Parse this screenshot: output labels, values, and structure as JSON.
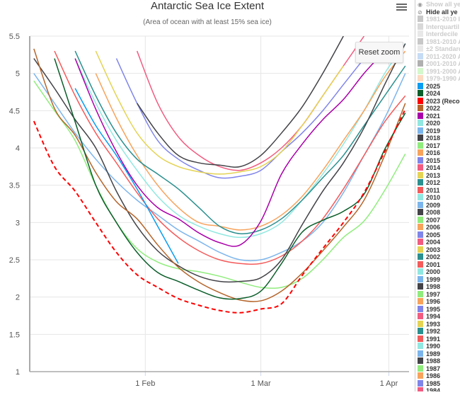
{
  "chart_data": {
    "type": "line",
    "title": "Antarctic Sea Ice Extent",
    "subtitle": "(Area of ocean with at least 15% sea ice)",
    "x": [
      "Jan 5",
      "Jan 10",
      "Jan 15",
      "Jan 20",
      "Jan 25",
      "Jan 30",
      "Feb 4",
      "Feb 9",
      "Feb 14",
      "Feb 19",
      "Feb 24",
      "Mar 1",
      "Mar 6",
      "Mar 11",
      "Mar 16",
      "Mar 21",
      "Mar 26",
      "Mar 31",
      "Apr 5"
    ],
    "x_ticks": [
      "1 Feb",
      "1 Mar",
      "1 Apr"
    ],
    "y_ticks": [
      "1",
      "1.5",
      "2",
      "2.5",
      "3",
      "3.5",
      "4",
      "4.5",
      "5",
      "5.5"
    ],
    "ylim": [
      1,
      5.5
    ],
    "xlim": [
      "Jan 4",
      "Apr 5"
    ],
    "grid": true,
    "legend_placement": "right",
    "series": [
      {
        "name": "2019",
        "color": "#7cb5ec",
        "values": [
          5.0,
          4.6,
          4.2,
          3.85,
          3.55,
          3.3,
          3.1,
          2.9,
          2.75,
          2.6,
          2.5,
          2.5,
          2.6,
          2.75,
          3.0,
          3.4,
          3.9,
          4.4,
          5.0
        ]
      },
      {
        "name": "2020",
        "color": "#91e8e1",
        "values": [
          null,
          null,
          5.2,
          4.6,
          4.1,
          3.7,
          3.35,
          3.1,
          2.95,
          2.85,
          2.8,
          2.85,
          3.0,
          3.3,
          3.65,
          4.05,
          4.5,
          5.0,
          5.4
        ]
      },
      {
        "name": "2016",
        "color": "#f7a35c",
        "values": [
          null,
          null,
          null,
          5.0,
          4.4,
          3.9,
          3.5,
          3.2,
          3.0,
          2.95,
          2.9,
          2.95,
          3.1,
          3.35,
          3.7,
          4.1,
          4.5,
          4.95,
          5.3
        ]
      },
      {
        "name": "2015",
        "color": "#8085e9",
        "values": [
          null,
          null,
          null,
          null,
          5.2,
          4.6,
          4.1,
          3.85,
          3.7,
          3.6,
          3.62,
          3.7,
          3.95,
          4.2,
          4.5,
          4.85,
          5.2,
          null,
          null
        ]
      },
      {
        "name": "2014",
        "color": "#f15c80",
        "values": [
          null,
          null,
          null,
          null,
          null,
          5.3,
          4.6,
          4.15,
          3.9,
          3.75,
          3.7,
          3.8,
          4.0,
          4.3,
          4.7,
          5.1,
          5.5,
          null,
          null
        ]
      },
      {
        "name": "2013",
        "color": "#e4d354",
        "values": [
          null,
          null,
          null,
          5.3,
          4.7,
          4.2,
          3.9,
          3.75,
          3.68,
          3.65,
          3.68,
          3.75,
          3.95,
          4.3,
          4.7,
          5.1,
          null,
          null,
          null
        ]
      },
      {
        "name": "2012",
        "color": "#2b908f",
        "values": [
          null,
          null,
          5.3,
          4.7,
          4.2,
          3.85,
          3.65,
          3.45,
          3.2,
          2.95,
          2.85,
          2.9,
          3.05,
          3.3,
          3.6,
          3.9,
          4.3,
          4.7,
          5.1
        ]
      },
      {
        "name": "2011",
        "color": "#f45b5b",
        "values": [
          null,
          5.3,
          4.7,
          4.2,
          3.8,
          3.4,
          3.05,
          2.8,
          2.62,
          2.5,
          2.45,
          2.45,
          2.55,
          2.75,
          3.05,
          3.45,
          3.9,
          4.35,
          4.7
        ]
      },
      {
        "name": "1988",
        "color": "#434348",
        "values": [
          null,
          null,
          null,
          null,
          null,
          4.6,
          4.2,
          3.9,
          3.8,
          3.77,
          3.75,
          3.9,
          4.2,
          4.55,
          5.0,
          5.5,
          null,
          null,
          null
        ]
      },
      {
        "name": "2017",
        "color": "#90ed7d",
        "values": [
          4.9,
          4.5,
          4.1,
          3.5,
          3.0,
          2.65,
          2.47,
          2.38,
          2.34,
          2.28,
          2.2,
          2.13,
          2.13,
          2.25,
          2.5,
          2.8,
          3.02,
          3.43,
          3.92
        ]
      },
      {
        "name": "2018",
        "color": "#434348",
        "values": [
          5.2,
          4.8,
          4.38,
          4.0,
          3.42,
          2.95,
          2.62,
          2.42,
          2.28,
          2.21,
          2.21,
          2.26,
          2.5,
          2.97,
          3.42,
          3.8,
          4.27,
          4.85,
          5.4
        ]
      },
      {
        "name": "2021",
        "color": "#aa00aa",
        "values": [
          null,
          null,
          5.2,
          4.52,
          3.95,
          3.5,
          3.2,
          3.05,
          2.86,
          2.73,
          2.7,
          3.02,
          3.65,
          4.05,
          4.38,
          4.65,
          5.0,
          5.3,
          null
        ]
      },
      {
        "name": "2022",
        "color": "#b5652b",
        "values": [
          5.33,
          4.53,
          4.17,
          3.67,
          3.28,
          3.05,
          2.7,
          2.4,
          2.2,
          2.06,
          1.96,
          1.95,
          2.08,
          2.32,
          2.62,
          2.94,
          3.3,
          3.9,
          4.6
        ]
      },
      {
        "name": "2025",
        "color": "#0a9cf0",
        "values": [
          null,
          null,
          4.8,
          4.3,
          3.9,
          3.45,
          2.95,
          2.45,
          null,
          null,
          null,
          null,
          null,
          null,
          null,
          null,
          null,
          null,
          null
        ]
      },
      {
        "name": "2024",
        "color": "#0b5e2a",
        "values": [
          null,
          5.2,
          4.35,
          3.5,
          3.0,
          2.6,
          2.33,
          2.21,
          2.09,
          1.99,
          1.98,
          2.08,
          2.45,
          2.87,
          3.03,
          3.15,
          3.38,
          3.98,
          4.47
        ]
      },
      {
        "name": "2023 (Reco",
        "color": "#ff0000",
        "dashed": true,
        "values": [
          4.36,
          3.75,
          3.42,
          3.0,
          2.6,
          2.3,
          2.13,
          1.98,
          1.89,
          1.82,
          1.79,
          1.84,
          1.91,
          2.29,
          2.65,
          3.0,
          3.4,
          3.95,
          4.52
        ]
      }
    ]
  },
  "toolbar": {
    "reset_zoom": "Reset zoom",
    "menu_icon": "hamburger-menu-icon"
  },
  "legend": {
    "controls": [
      {
        "label": "Show all ye",
        "icon": "eye-icon"
      },
      {
        "label": "Hide all ye",
        "icon": "eye-slash-icon"
      }
    ],
    "ranges": [
      {
        "label": "1981-2010 I",
        "color": "#c8c8c8"
      },
      {
        "label": "Interquartil",
        "color": "#d8d8d8"
      },
      {
        "label": "Interdecile",
        "color": "#e8e8e8"
      },
      {
        "label": "1981-2010 A",
        "color": "#c8c8c8"
      },
      {
        "label": "±2 Standard",
        "color": "#e8e8e8"
      },
      {
        "label": "2011-2020 A",
        "color": "#c6dcf5"
      },
      {
        "label": "2001-2010 A",
        "color": "#b0b0b0"
      },
      {
        "label": "1991-2000 A",
        "color": "#d4f7cc"
      },
      {
        "label": "1979-1990 A",
        "color": "#fcd9c0"
      }
    ],
    "years": [
      {
        "label": "2025",
        "color": "#0a9cf0"
      },
      {
        "label": "2024",
        "color": "#0b5e2a"
      },
      {
        "label": "2023 (Reco",
        "color": "#ff0000"
      },
      {
        "label": "2022",
        "color": "#b5652b"
      },
      {
        "label": "2021",
        "color": "#aa00aa"
      },
      {
        "label": "2020",
        "color": "#91e8e1"
      },
      {
        "label": "2019",
        "color": "#7cb5ec"
      },
      {
        "label": "2018",
        "color": "#434348"
      },
      {
        "label": "2017",
        "color": "#90ed7d"
      },
      {
        "label": "2016",
        "color": "#f7a35c"
      },
      {
        "label": "2015",
        "color": "#8085e9"
      },
      {
        "label": "2014",
        "color": "#f15c80"
      },
      {
        "label": "2013",
        "color": "#e4d354"
      },
      {
        "label": "2012",
        "color": "#2b908f"
      },
      {
        "label": "2011",
        "color": "#f45b5b"
      },
      {
        "label": "2010",
        "color": "#91e8e1"
      },
      {
        "label": "2009",
        "color": "#7cb5ec"
      },
      {
        "label": "2008",
        "color": "#434348"
      },
      {
        "label": "2007",
        "color": "#90ed7d"
      },
      {
        "label": "2006",
        "color": "#f7a35c"
      },
      {
        "label": "2005",
        "color": "#8085e9"
      },
      {
        "label": "2004",
        "color": "#f15c80"
      },
      {
        "label": "2003",
        "color": "#e4d354"
      },
      {
        "label": "2002",
        "color": "#2b908f"
      },
      {
        "label": "2001",
        "color": "#f45b5b"
      },
      {
        "label": "2000",
        "color": "#91e8e1"
      },
      {
        "label": "1999",
        "color": "#7cb5ec"
      },
      {
        "label": "1998",
        "color": "#434348"
      },
      {
        "label": "1997",
        "color": "#90ed7d"
      },
      {
        "label": "1996",
        "color": "#f7a35c"
      },
      {
        "label": "1995",
        "color": "#8085e9"
      },
      {
        "label": "1994",
        "color": "#f15c80"
      },
      {
        "label": "1993",
        "color": "#e4d354"
      },
      {
        "label": "1992",
        "color": "#2b908f"
      },
      {
        "label": "1991",
        "color": "#f45b5b"
      },
      {
        "label": "1990",
        "color": "#91e8e1"
      },
      {
        "label": "1989",
        "color": "#7cb5ec"
      },
      {
        "label": "1988",
        "color": "#434348"
      },
      {
        "label": "1987",
        "color": "#90ed7d"
      },
      {
        "label": "1986",
        "color": "#f7a35c"
      },
      {
        "label": "1985",
        "color": "#8085e9"
      },
      {
        "label": "1984",
        "color": "#f15c80"
      }
    ]
  }
}
